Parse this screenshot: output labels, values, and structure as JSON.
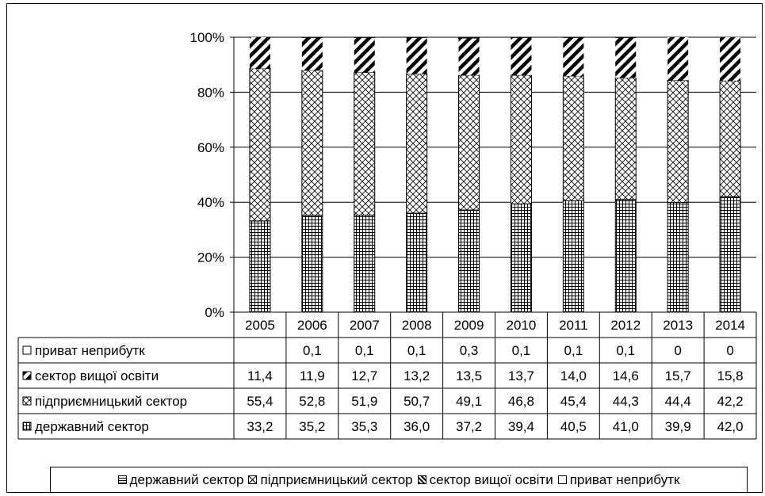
{
  "chart_data": {
    "type": "bar",
    "stacked": true,
    "percent": true,
    "categories": [
      "2005",
      "2006",
      "2007",
      "2008",
      "2009",
      "2010",
      "2011",
      "2012",
      "2013",
      "2014"
    ],
    "y_ticks": [
      "0%",
      "20%",
      "40%",
      "60%",
      "80%",
      "100%"
    ],
    "ylim": [
      0,
      100
    ],
    "grid": true,
    "legend_position": "bottom",
    "series": [
      {
        "name": "державний сектор",
        "pattern": "grid",
        "labels": [
          "33,2",
          "35,2",
          "35,3",
          "36,0",
          "37,2",
          "39,4",
          "40,5",
          "41,0",
          "39,9",
          "42,0"
        ],
        "values": [
          33.2,
          35.2,
          35.3,
          36.0,
          37.2,
          39.4,
          40.5,
          41.0,
          39.9,
          42.0
        ]
      },
      {
        "name": "підприємницький сектор",
        "pattern": "crosshatch",
        "labels": [
          "55,4",
          "52,8",
          "51,9",
          "50,7",
          "49,1",
          "46,8",
          "45,4",
          "44,3",
          "44,4",
          "42,2"
        ],
        "values": [
          55.4,
          52.8,
          51.9,
          50.7,
          49.1,
          46.8,
          45.4,
          44.3,
          44.4,
          42.2
        ]
      },
      {
        "name": "сектор вищої освіти",
        "pattern": "diagonal",
        "labels": [
          "11,4",
          "11,9",
          "12,7",
          "13,2",
          "13,5",
          "13,7",
          "14,0",
          "14,6",
          "15,7",
          "15,8"
        ],
        "values": [
          11.4,
          11.9,
          12.7,
          13.2,
          13.5,
          13.7,
          14.0,
          14.6,
          15.7,
          15.8
        ]
      },
      {
        "name": "приват неприбутк",
        "pattern": "white",
        "labels": [
          "",
          "0,1",
          "0,1",
          "0,1",
          "0,3",
          "0,1",
          "0,1",
          "0,1",
          "0",
          "0"
        ],
        "values": [
          0,
          0.1,
          0.1,
          0.1,
          0.3,
          0.1,
          0.1,
          0.1,
          0,
          0
        ]
      }
    ]
  }
}
